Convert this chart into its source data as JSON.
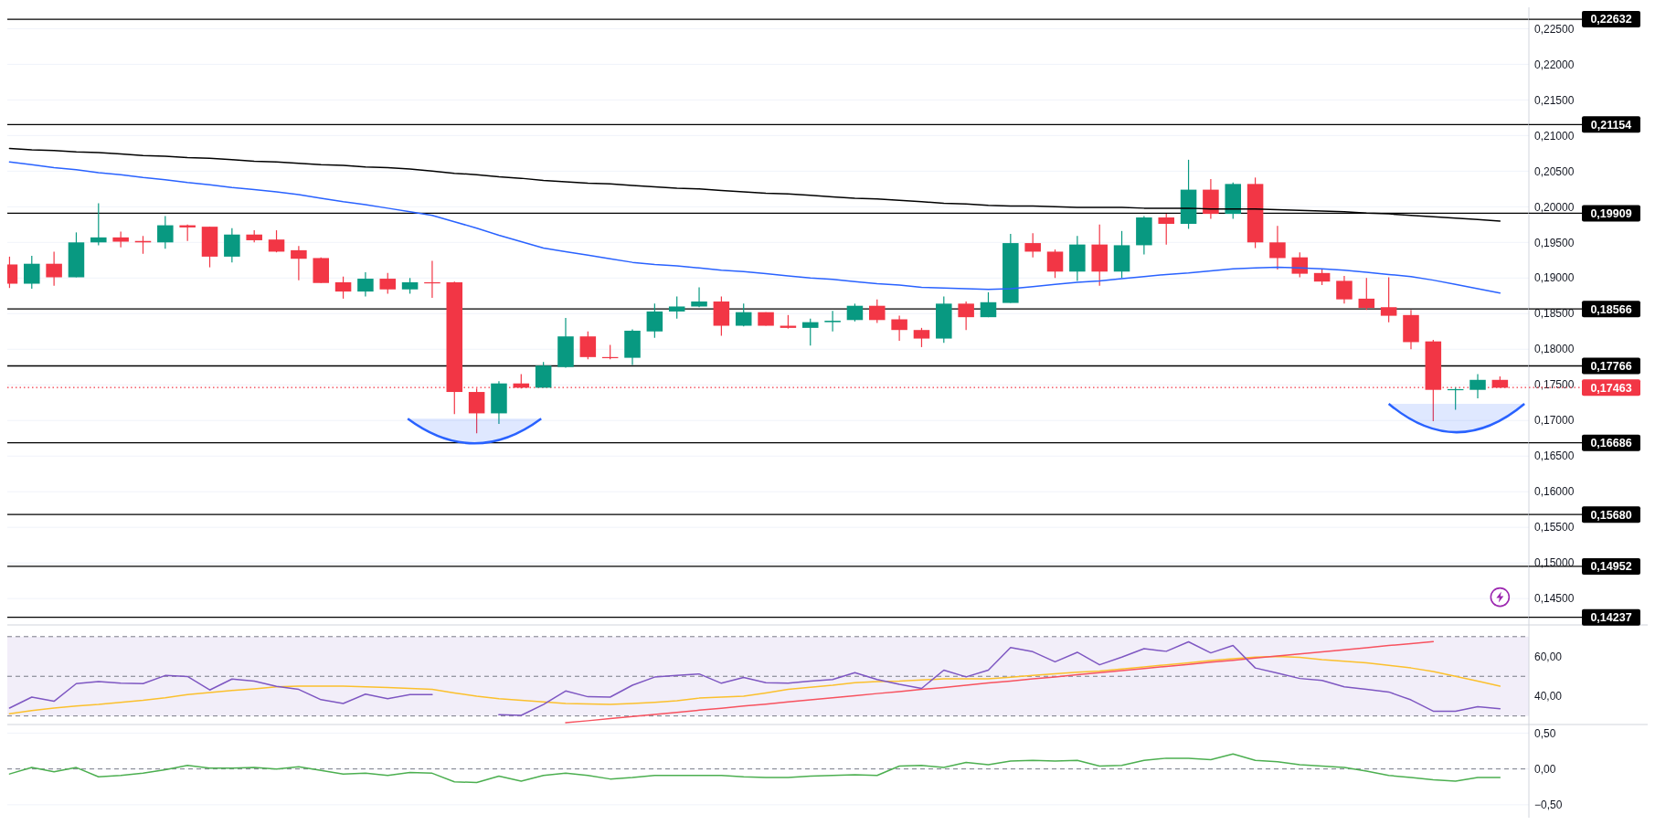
{
  "chart_data": [
    {
      "type": "candlestick",
      "tick_labels": "y",
      "grid": "y",
      "categories": [
        null,
        null,
        null,
        null,
        null,
        null,
        null,
        null,
        null,
        null,
        null,
        null,
        null,
        null,
        null,
        null,
        null,
        null,
        null,
        null,
        null,
        null,
        null,
        null,
        null,
        null,
        null,
        null,
        null,
        null,
        null,
        null,
        null,
        null,
        null,
        null,
        null,
        null,
        null,
        null,
        null,
        null,
        null,
        null,
        null,
        null,
        null,
        null,
        null,
        null,
        null,
        null,
        null,
        null,
        null,
        null,
        null,
        null,
        null,
        null,
        null,
        null,
        null,
        null,
        null,
        null,
        null,
        null
      ],
      "ohlc": [
        [
          0.1919,
          0.193,
          0.1886,
          0.1892
        ],
        [
          0.1892,
          0.1931,
          0.1885,
          0.192
        ],
        [
          0.192,
          0.1937,
          0.1889,
          0.1901
        ],
        [
          0.1901,
          0.1964,
          0.1901,
          0.195
        ],
        [
          0.195,
          0.2005,
          0.1946,
          0.1957
        ],
        [
          0.1957,
          0.1965,
          0.1943,
          0.1951
        ],
        [
          0.1952,
          0.1959,
          0.1934,
          0.195
        ],
        [
          0.195,
          0.1987,
          0.1941,
          0.1974
        ],
        [
          0.1974,
          0.1975,
          0.1952,
          0.1971
        ],
        [
          0.1972,
          0.1972,
          0.1915,
          0.193
        ],
        [
          0.193,
          0.197,
          0.1922,
          0.1961
        ],
        [
          0.1961,
          0.1967,
          0.195,
          0.1953
        ],
        [
          0.1954,
          0.1967,
          0.1936,
          0.1937
        ],
        [
          0.1939,
          0.1945,
          0.1897,
          0.1927
        ],
        [
          0.1928,
          0.1929,
          0.1893,
          0.1893
        ],
        [
          0.1894,
          0.1902,
          0.1871,
          0.1881
        ],
        [
          0.1881,
          0.1908,
          0.1874,
          0.1899
        ],
        [
          0.1899,
          0.1907,
          0.1878,
          0.1884
        ],
        [
          0.1884,
          0.19,
          0.1878,
          0.1894
        ],
        [
          0.1894,
          0.1924,
          0.1872,
          0.1893
        ],
        [
          0.1894,
          0.1895,
          0.1709,
          0.174
        ],
        [
          0.174,
          0.1745,
          0.1682,
          0.171
        ],
        [
          0.171,
          0.1755,
          0.1695,
          0.1752
        ],
        [
          0.1752,
          0.1765,
          0.1745,
          0.1746
        ],
        [
          0.1746,
          0.1782,
          0.1746,
          0.1777
        ],
        [
          0.1775,
          0.1844,
          0.1774,
          0.1818
        ],
        [
          0.1818,
          0.1825,
          0.1786,
          0.1789
        ],
        [
          0.1789,
          0.1806,
          0.1786,
          0.1788
        ],
        [
          0.1788,
          0.1828,
          0.1778,
          0.1826
        ],
        [
          0.1825,
          0.1864,
          0.1816,
          0.1853
        ],
        [
          0.1853,
          0.1874,
          0.1843,
          0.186
        ],
        [
          0.186,
          0.1887,
          0.1859,
          0.1867
        ],
        [
          0.1867,
          0.1874,
          0.1819,
          0.1833
        ],
        [
          0.1833,
          0.1864,
          0.1832,
          0.1852
        ],
        [
          0.1852,
          0.1852,
          0.1833,
          0.1833
        ],
        [
          0.1833,
          0.1848,
          0.1829,
          0.183
        ],
        [
          0.183,
          0.1843,
          0.1805,
          0.1838
        ],
        [
          0.1838,
          0.1854,
          0.1825,
          0.184
        ],
        [
          0.1841,
          0.1864,
          0.1839,
          0.1861
        ],
        [
          0.1861,
          0.187,
          0.1837,
          0.1841
        ],
        [
          0.1842,
          0.1847,
          0.1812,
          0.1827
        ],
        [
          0.1827,
          0.183,
          0.1803,
          0.1815
        ],
        [
          0.1815,
          0.1874,
          0.1809,
          0.1864
        ],
        [
          0.1864,
          0.1867,
          0.1827,
          0.1845
        ],
        [
          0.1845,
          0.188,
          0.1845,
          0.1866
        ],
        [
          0.1865,
          0.1962,
          0.1865,
          0.1949
        ],
        [
          0.1949,
          0.1963,
          0.1929,
          0.1937
        ],
        [
          0.1937,
          0.194,
          0.19,
          0.1909
        ],
        [
          0.1909,
          0.1959,
          0.1896,
          0.1947
        ],
        [
          0.1947,
          0.1975,
          0.1889,
          0.1909
        ],
        [
          0.1909,
          0.1966,
          0.19,
          0.1946
        ],
        [
          0.1946,
          0.1987,
          0.1933,
          0.1985
        ],
        [
          0.1985,
          0.199,
          0.1947,
          0.1976
        ],
        [
          0.1976,
          0.2066,
          0.1969,
          0.2024
        ],
        [
          0.2024,
          0.2039,
          0.1983,
          0.199
        ],
        [
          0.199,
          0.2034,
          0.1983,
          0.2032
        ],
        [
          0.2032,
          0.2041,
          0.1942,
          0.195
        ],
        [
          0.195,
          0.1973,
          0.1912,
          0.1928
        ],
        [
          0.1929,
          0.1936,
          0.1901,
          0.1906
        ],
        [
          0.1907,
          0.1913,
          0.189,
          0.1895
        ],
        [
          0.1896,
          0.1903,
          0.1864,
          0.187
        ],
        [
          0.1871,
          0.19,
          0.1855,
          0.1858
        ],
        [
          0.1859,
          0.1901,
          0.1838,
          0.1847
        ],
        [
          0.1848,
          0.1855,
          0.18,
          0.181
        ],
        [
          0.1811,
          0.1813,
          0.1699,
          0.1743
        ],
        [
          0.1743,
          0.1746,
          0.1715,
          0.1744
        ],
        [
          0.1743,
          0.1765,
          0.1731,
          0.1757
        ],
        [
          0.1757,
          0.1762,
          0.1746,
          0.1746
        ]
      ],
      "colors": [
        "#f23645",
        "#089981",
        "#f23645",
        "#089981",
        "#089981",
        "#f23645",
        "#f23645",
        "#089981",
        "#f23645",
        "#f23645",
        "#089981",
        "#f23645",
        "#f23645",
        "#f23645",
        "#f23645",
        "#f23645",
        "#089981",
        "#f23645",
        "#089981",
        "#f23645",
        "#f23645",
        "#f23645",
        "#089981",
        "#f23645",
        "#089981",
        "#089981",
        "#f23645",
        "#f23645",
        "#089981",
        "#089981",
        "#089981",
        "#089981",
        "#f23645",
        "#089981",
        "#f23645",
        "#f23645",
        "#089981",
        "#089981",
        "#089981",
        "#f23645",
        "#f23645",
        "#f23645",
        "#089981",
        "#f23645",
        "#089981",
        "#089981",
        "#f23645",
        "#f23645",
        "#089981",
        "#f23645",
        "#089981",
        "#089981",
        "#f23645",
        "#089981",
        "#f23645",
        "#089981",
        "#f23645",
        "#f23645",
        "#f23645",
        "#f23645",
        "#f23645",
        "#f23645",
        "#f23645",
        "#f23645",
        "#f23645",
        "#089981",
        "#089981",
        "#f23645"
      ],
      "series": [
        {
          "type": "line",
          "color": "#000000",
          "values": [
            0.2082,
            0.208,
            0.2079,
            0.2077,
            0.2076,
            0.2074,
            0.2072,
            0.2071,
            0.2069,
            0.2068,
            0.2066,
            0.2064,
            0.2063,
            0.2061,
            0.2059,
            0.2058,
            0.2056,
            0.2055,
            0.2053,
            0.205,
            0.2047,
            0.2045,
            0.2042,
            0.204,
            0.2037,
            0.2035,
            0.2033,
            0.2032,
            0.203,
            0.2028,
            0.2026,
            0.2025,
            0.2023,
            0.2021,
            0.2019,
            0.2018,
            0.2016,
            0.2014,
            0.2012,
            0.2011,
            0.2009,
            0.2007,
            0.2005,
            0.2004,
            0.2002,
            0.2001,
            0.2001,
            0.2,
            0.1999,
            0.1999,
            0.1999,
            0.1998,
            0.1998,
            0.1998,
            0.1997,
            0.1997,
            0.1997,
            0.1996,
            0.1995,
            0.1994,
            0.1993,
            0.1991,
            0.199,
            0.1988,
            0.1986,
            0.1984,
            0.1982,
            0.198
          ]
        },
        {
          "type": "line",
          "color": "#2962ff",
          "values": [
            0.2063,
            0.2059,
            0.2055,
            0.2052,
            0.2048,
            0.2045,
            0.2041,
            0.2038,
            0.2034,
            0.2031,
            0.2027,
            0.2024,
            0.2021,
            0.2017,
            0.2012,
            0.2007,
            0.2003,
            0.1998,
            0.1993,
            0.1988,
            0.1979,
            0.197,
            0.196,
            0.1951,
            0.1942,
            0.1937,
            0.1932,
            0.1927,
            0.1922,
            0.1919,
            0.1917,
            0.1914,
            0.1911,
            0.1909,
            0.1906,
            0.1903,
            0.19,
            0.1898,
            0.1895,
            0.1892,
            0.189,
            0.1887,
            0.1886,
            0.1885,
            0.1884,
            0.1885,
            0.1888,
            0.1891,
            0.1894,
            0.1896,
            0.1899,
            0.1902,
            0.1905,
            0.1907,
            0.191,
            0.1913,
            0.1914,
            0.1915,
            0.1914,
            0.1913,
            0.1911,
            0.1908,
            0.1905,
            0.1902,
            0.1897,
            0.1891,
            0.1885,
            0.1879
          ]
        }
      ],
      "ylim": [
        0.1413,
        0.228
      ],
      "yticks": [
        {
          "value": 0.145,
          "label": "0,14500"
        },
        {
          "value": 0.15,
          "label": "0,15000"
        },
        {
          "value": 0.155,
          "label": "0,15500"
        },
        {
          "value": 0.16,
          "label": "0,16000"
        },
        {
          "value": 0.165,
          "label": "0,16500"
        },
        {
          "value": 0.17,
          "label": "0,17000"
        },
        {
          "value": 0.175,
          "label": "0,17500"
        },
        {
          "value": 0.18,
          "label": "0,18000"
        },
        {
          "value": 0.185,
          "label": "0,18500"
        },
        {
          "value": 0.19,
          "label": "0,19000"
        },
        {
          "value": 0.195,
          "label": "0,19500"
        },
        {
          "value": 0.2,
          "label": "0,20000"
        },
        {
          "value": 0.205,
          "label": "0,20500"
        },
        {
          "value": 0.21,
          "label": "0,21000"
        },
        {
          "value": 0.215,
          "label": "0,21500"
        },
        {
          "value": 0.22,
          "label": "0,22000"
        },
        {
          "value": 0.225,
          "label": "0,22500"
        }
      ],
      "ref_lines": [
        {
          "axis": "y",
          "value": 0.22632,
          "label": "0,22632",
          "color": "#000000"
        },
        {
          "axis": "y",
          "value": 0.21154,
          "label": "0,21154",
          "color": "#000000"
        },
        {
          "axis": "y",
          "value": 0.19909,
          "label": "0,19909",
          "color": "#000000"
        },
        {
          "axis": "y",
          "value": 0.18566,
          "label": "0,18566",
          "color": "#000000"
        },
        {
          "axis": "y",
          "value": 0.17766,
          "label": "0,17766",
          "color": "#000000"
        },
        {
          "axis": "y",
          "value": 0.16686,
          "label": "0,16686",
          "color": "#000000"
        },
        {
          "axis": "y",
          "value": 0.1568,
          "label": "0,15680",
          "color": "#000000"
        },
        {
          "axis": "y",
          "value": 0.14952,
          "label": "0,14952",
          "color": "#000000"
        },
        {
          "axis": "y",
          "value": 0.14237,
          "label": "0,14237",
          "color": "#000000"
        },
        {
          "axis": "y",
          "value": 0.17463,
          "label": "0,17463",
          "color": "#f23645",
          "line_style": "dotted"
        }
      ]
    },
    {
      "type": "line",
      "tick_labels": "y",
      "categories": [
        null,
        null,
        null,
        null,
        null,
        null,
        null,
        null,
        null,
        null,
        null,
        null,
        null,
        null,
        null,
        null,
        null,
        null,
        null,
        null,
        null,
        null,
        null,
        null,
        null,
        null,
        null,
        null,
        null,
        null,
        null,
        null,
        null,
        null,
        null,
        null,
        null,
        null,
        null,
        null,
        null,
        null,
        null,
        null,
        null,
        null,
        null,
        null,
        null,
        null,
        null,
        null,
        null,
        null,
        null,
        null,
        null,
        null,
        null,
        null,
        null,
        null,
        null,
        null,
        null,
        null,
        null,
        null
      ],
      "series": [
        {
          "color": "#fbc02d",
          "values": [
            31.1,
            32.7,
            34.0,
            35.0,
            35.8,
            36.9,
            37.9,
            39.2,
            40.8,
            41.8,
            42.9,
            43.7,
            44.7,
            45.0,
            45.0,
            45.0,
            44.7,
            44.3,
            43.9,
            43.4,
            41.6,
            40.0,
            38.7,
            37.9,
            37.1,
            36.3,
            36.1,
            35.8,
            36.3,
            36.9,
            37.7,
            39.0,
            39.5,
            40.0,
            41.6,
            43.4,
            44.5,
            45.5,
            46.8,
            47.4,
            47.6,
            48.1,
            48.7,
            48.7,
            48.7,
            49.5,
            50.5,
            51.3,
            52.1,
            52.6,
            53.7,
            54.7,
            55.8,
            56.8,
            57.9,
            58.9,
            59.7,
            60.0,
            59.5,
            58.4,
            57.6,
            56.8,
            55.5,
            54.2,
            52.4,
            50.0,
            47.6,
            45.0
          ]
        },
        {
          "color": "#f7525f",
          "values": [
            null,
            null,
            null,
            null,
            null,
            null,
            null,
            null,
            null,
            null,
            null,
            null,
            null,
            null,
            null,
            null,
            null,
            null,
            null,
            null,
            null,
            null,
            null,
            null,
            null,
            26.6,
            27.6,
            28.7,
            29.7,
            30.8,
            31.8,
            32.9,
            33.9,
            35.0,
            36.0,
            37.1,
            38.1,
            39.2,
            40.2,
            41.3,
            42.3,
            43.4,
            44.4,
            45.5,
            46.6,
            47.6,
            48.7,
            49.7,
            50.8,
            51.8,
            52.9,
            53.9,
            55.0,
            56.0,
            57.1,
            58.1,
            59.2,
            60.2,
            61.3,
            62.3,
            63.4,
            64.4,
            65.5,
            66.5,
            67.5,
            null,
            null,
            null
          ]
        },
        {
          "color": "#7e57c2",
          "values": [
            34.0,
            39.5,
            37.4,
            46.3,
            47.3,
            46.5,
            46.3,
            50.4,
            49.9,
            43.1,
            48.6,
            47.6,
            44.9,
            43.4,
            38.2,
            36.3,
            41.0,
            38.7,
            40.8,
            40.8,
            null,
            null,
            30.6,
            30.3,
            35.8,
            42.6,
            39.7,
            39.5,
            45.5,
            49.6,
            50.4,
            51.2,
            46.5,
            49.4,
            46.8,
            46.5,
            47.6,
            48.4,
            51.8,
            48.4,
            46.0,
            43.9,
            53.1,
            49.7,
            53.1,
            64.5,
            62.4,
            57.3,
            62.1,
            55.8,
            59.7,
            63.9,
            62.6,
            67.4,
            61.8,
            65.5,
            54.2,
            51.6,
            48.9,
            47.9,
            44.7,
            43.4,
            42.1,
            38.1,
            32.4,
            32.4,
            34.7,
            33.7
          ]
        }
      ],
      "ylim": [
        25.7,
        75.9
      ],
      "yticks": [
        {
          "value": 40,
          "label": "40,00"
        },
        {
          "value": 60,
          "label": "60,00"
        }
      ],
      "bands": [
        {
          "axis": "y",
          "from": 30,
          "to": 70,
          "color": "#7e57c2"
        }
      ],
      "ref_lines": [
        {
          "axis": "y",
          "value": 70,
          "color": "#787b86",
          "line_style": "dashed"
        },
        {
          "axis": "y",
          "value": 50,
          "color": "#787b86",
          "line_style": "dashed"
        },
        {
          "axis": "y",
          "value": 30,
          "color": "#787b86",
          "line_style": "dashed"
        }
      ]
    },
    {
      "type": "line",
      "tick_labels": "y",
      "grid": "y",
      "categories": [
        null,
        null,
        null,
        null,
        null,
        null,
        null,
        null,
        null,
        null,
        null,
        null,
        null,
        null,
        null,
        null,
        null,
        null,
        null,
        null,
        null,
        null,
        null,
        null,
        null,
        null,
        null,
        null,
        null,
        null,
        null,
        null,
        null,
        null,
        null,
        null,
        null,
        null,
        null,
        null,
        null,
        null,
        null,
        null,
        null,
        null,
        null,
        null,
        null,
        null,
        null,
        null,
        null,
        null,
        null,
        null,
        null,
        null,
        null,
        null,
        null,
        null,
        null,
        null,
        null,
        null,
        null,
        null
      ],
      "series": [
        {
          "color": "#4caf50",
          "values": [
            -0.07,
            0.02,
            -0.04,
            0.02,
            -0.11,
            -0.09,
            -0.06,
            -0.01,
            0.05,
            0.01,
            0.01,
            0.02,
            0,
            0.03,
            -0.02,
            -0.07,
            -0.06,
            -0.09,
            -0.05,
            -0.06,
            -0.18,
            -0.19,
            -0.1,
            -0.17,
            -0.09,
            -0.06,
            -0.09,
            -0.14,
            -0.12,
            -0.09,
            -0.09,
            -0.09,
            -0.09,
            -0.11,
            -0.12,
            -0.12,
            -0.1,
            -0.09,
            -0.08,
            -0.09,
            0.04,
            0.05,
            0.02,
            0.09,
            0.06,
            0.11,
            0.12,
            0.11,
            0.12,
            0.04,
            0.05,
            0.12,
            0.15,
            0.15,
            0.13,
            0.21,
            0.12,
            0.1,
            0.06,
            0.04,
            0.02,
            -0.03,
            -0.09,
            -0.12,
            -0.15,
            -0.17,
            -0.12,
            -0.12
          ]
        }
      ],
      "ylim": [
        -0.68,
        0.62
      ],
      "yticks": [
        {
          "value": -0.5,
          "label": "−0,50"
        },
        {
          "value": 0,
          "label": "0,00"
        },
        {
          "value": 0.5,
          "label": "0,50"
        }
      ],
      "ref_lines": [
        {
          "axis": "y",
          "value": 0,
          "color": "#787b86",
          "line_style": "dashed"
        }
      ]
    }
  ]
}
